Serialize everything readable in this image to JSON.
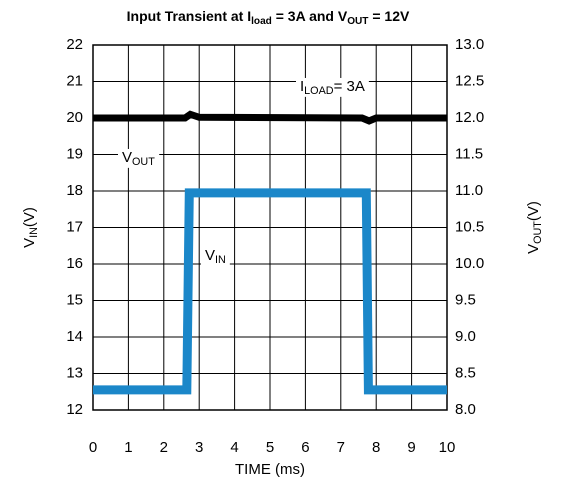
{
  "chart_data": {
    "type": "line",
    "title": [
      {
        "text": "Input Transient at I"
      },
      {
        "text": "load",
        "sub": true
      },
      {
        "text": " = 3A and V"
      },
      {
        "text": "OUT",
        "sub": true
      },
      {
        "text": " = 12V"
      }
    ],
    "x_label": [
      {
        "text": "TIME (ms)"
      }
    ],
    "y_label": [
      {
        "text": "V"
      },
      {
        "text": "IN",
        "sub": true
      },
      {
        "text": "(V)"
      }
    ],
    "y2_label": [
      {
        "text": "V"
      },
      {
        "text": "OUT",
        "sub": true
      },
      {
        "text": "(V)"
      }
    ],
    "annotations": [
      [
        {
          "text": "I"
        },
        {
          "text": "LOAD",
          "sub": true
        },
        {
          "text": "= 3A"
        }
      ],
      [
        {
          "text": "V"
        },
        {
          "text": "OUT",
          "sub": true
        }
      ],
      [
        {
          "text": "V"
        },
        {
          "text": "IN",
          "sub": true
        }
      ]
    ],
    "xlim": [
      0,
      10
    ],
    "xticks": [
      0,
      1,
      2,
      3,
      4,
      5,
      6,
      7,
      8,
      9,
      10
    ],
    "ylim": [
      12,
      22
    ],
    "yticks": [
      12,
      13,
      14,
      15,
      16,
      17,
      18,
      19,
      20,
      21,
      22
    ],
    "y2lim": [
      8,
      13
    ],
    "y2ticks": [
      {
        "value": 8,
        "label": "8.0"
      },
      {
        "value": 8.5,
        "label": "8.5"
      },
      {
        "value": 9,
        "label": "9.0"
      },
      {
        "value": 9.5,
        "label": "9.5"
      },
      {
        "value": 10,
        "label": "10.0"
      },
      {
        "value": 10.5,
        "label": "10.5"
      },
      {
        "value": 11,
        "label": "11.0"
      },
      {
        "value": 11.5,
        "label": "11.5"
      },
      {
        "value": 12,
        "label": "12.0"
      },
      {
        "value": 12.5,
        "label": "12.5"
      },
      {
        "value": 13,
        "label": "13.0"
      }
    ],
    "grid": true,
    "series": [
      {
        "name": "VIN",
        "color": "#1b87c9",
        "x": [
          0,
          2.65,
          2.72,
          7.72,
          7.78,
          10
        ],
        "values": [
          12.55,
          12.55,
          17.95,
          17.95,
          12.55,
          12.55
        ]
      },
      {
        "name": "VOUT",
        "color": "#000000",
        "axis": "y2",
        "x": [
          0,
          2.6,
          2.75,
          3.0,
          7.6,
          7.8,
          8.0,
          10
        ],
        "values": [
          12.0,
          12.0,
          12.05,
          12.01,
          12.0,
          11.96,
          12.0,
          12.0
        ]
      }
    ]
  }
}
